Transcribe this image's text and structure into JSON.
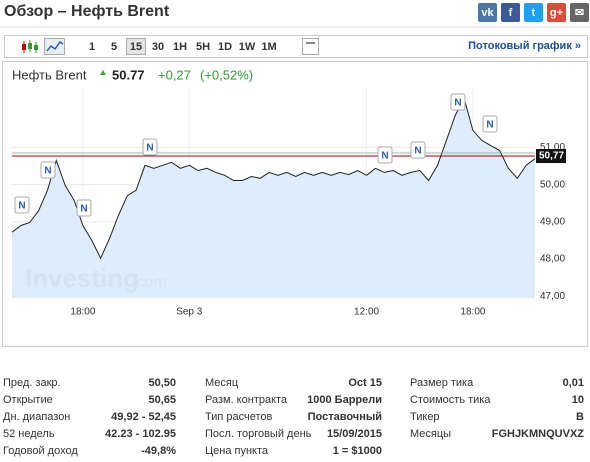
{
  "header": {
    "title": "Обзор – Нефть Brent",
    "share_icons": [
      "vk",
      "f",
      "t",
      "g+",
      "✉"
    ]
  },
  "toolbar": {
    "buttons": [
      "1",
      "5",
      "15",
      "30",
      "1H",
      "5H",
      "1D",
      "1W",
      "1M"
    ],
    "selected": "15",
    "stream_link": "Потоковый график »"
  },
  "quote": {
    "name": "Нефть Brent",
    "last": "50.77",
    "change": "+0,27",
    "change_pct": "(+0,52%)"
  },
  "chart_data": {
    "type": "area",
    "categories": [
      null,
      null,
      null,
      null,
      null,
      null,
      null,
      null,
      "18:00",
      null,
      null,
      null,
      null,
      null,
      null,
      null,
      null,
      null,
      null,
      null,
      "Sep 3",
      null,
      null,
      null,
      null,
      null,
      null,
      null,
      null,
      null,
      null,
      null,
      null,
      null,
      null,
      null,
      null,
      null,
      null,
      null,
      "12:00",
      null,
      null,
      null,
      null,
      null,
      null,
      null,
      null,
      null,
      null,
      null,
      "18:00",
      null,
      null,
      null,
      null,
      null,
      null,
      null
    ],
    "values": [
      48.72,
      48.9,
      48.98,
      49.3,
      49.85,
      50.65,
      49.98,
      49.58,
      48.9,
      48.5,
      48.02,
      48.55,
      49.17,
      49.7,
      49.85,
      50.52,
      50.44,
      50.52,
      50.6,
      50.44,
      50.52,
      50.38,
      50.44,
      50.33,
      50.25,
      50.11,
      50.11,
      50.22,
      50.17,
      50.33,
      50.25,
      50.33,
      50.22,
      50.33,
      50.25,
      50.33,
      50.25,
      50.33,
      50.27,
      50.38,
      50.25,
      50.44,
      50.33,
      50.38,
      50.25,
      50.33,
      50.38,
      50.11,
      50.52,
      51.19,
      51.86,
      52.32,
      51.46,
      51.19,
      51.05,
      50.92,
      50.44,
      50.17,
      50.52,
      50.7
    ],
    "color": "#222222",
    "fill": "#d8e9fb",
    "ylim": [
      46.95,
      52.6
    ],
    "yticks": [
      {
        "value": 47,
        "label": "47,00"
      },
      {
        "value": 48,
        "label": "48,00"
      },
      {
        "value": 49,
        "label": "49,00"
      },
      {
        "value": 50,
        "label": "50,00"
      },
      {
        "value": 51,
        "label": "51,00"
      }
    ],
    "current_price": {
      "value": 50.77,
      "label": "50,77"
    },
    "news_label": "N",
    "watermark": "Investing",
    "watermark_suffix": ".com",
    "grid": true
  },
  "stats": [
    [
      [
        "Пред. закр.",
        "50,50"
      ],
      [
        "Открытие",
        "50,65"
      ],
      [
        "Дн. диапазон",
        "49,92 - 52,45"
      ],
      [
        "52 недель",
        "42.23 - 102.95"
      ],
      [
        "Годовой доход",
        "-49,8%"
      ]
    ],
    [
      [
        "Месяц",
        "Oct 15"
      ],
      [
        "Разм. контракта",
        "1000 Баррели"
      ],
      [
        "Тип расчетов",
        "Поставочный"
      ],
      [
        "Посл. торговый день",
        "15/09/2015"
      ],
      [
        "Цена пункта",
        "1 = $1000"
      ]
    ],
    [
      [
        "Размер тика",
        "0,01"
      ],
      [
        "Стоимость тика",
        "10"
      ],
      [
        "Тикер",
        "B"
      ],
      [
        "Месяцы",
        "FGHJKMNQUVXZ"
      ]
    ]
  ]
}
